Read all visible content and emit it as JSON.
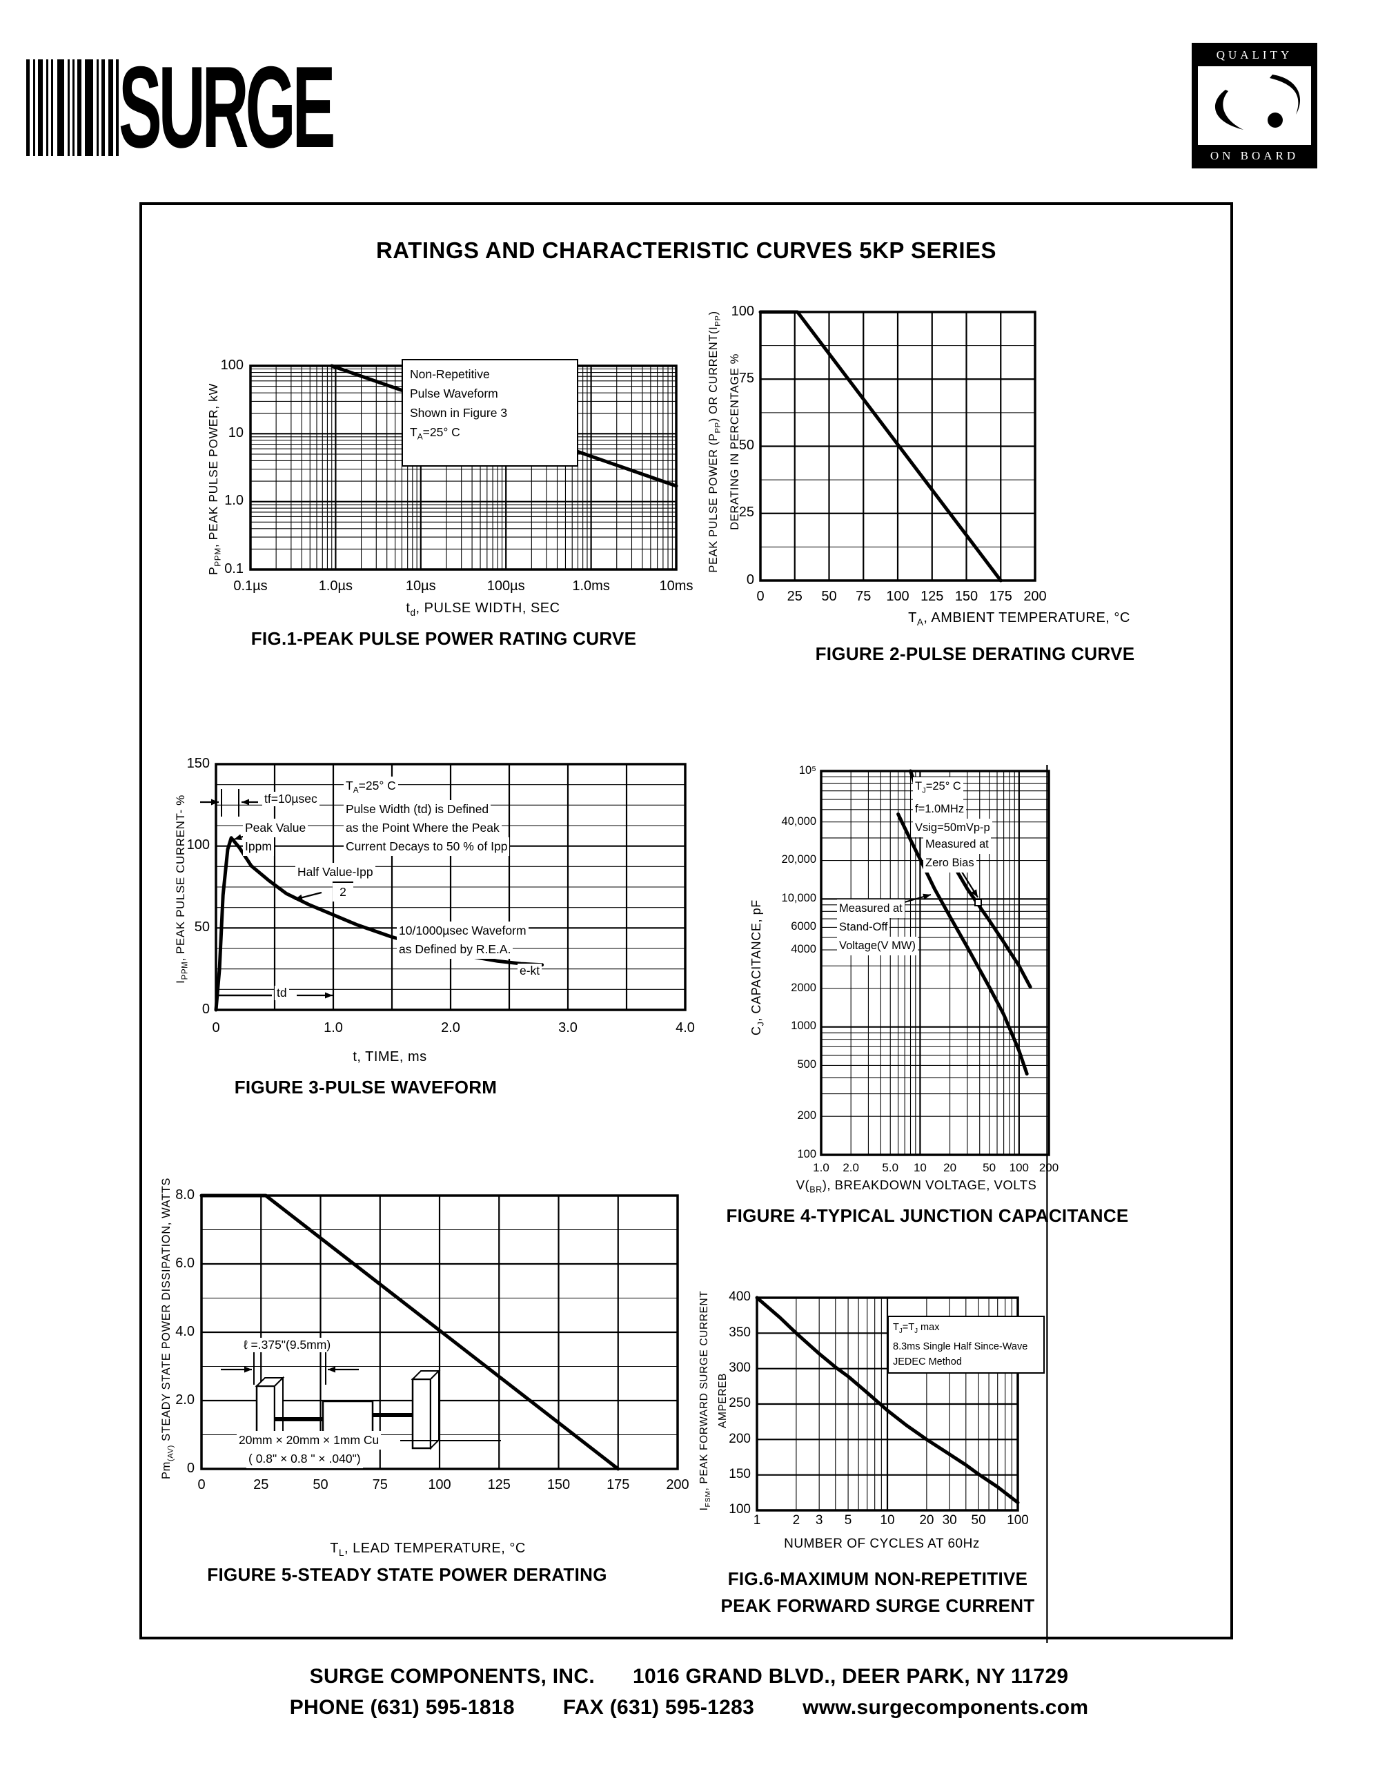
{
  "header": {
    "brand_wordmark": "SURGE",
    "badge_top": "QUALITY",
    "badge_bottom": "ON BOARD"
  },
  "title": "RATINGS AND CHARACTERISTIC CURVES 5KP SERIES",
  "footer": {
    "company": "SURGE COMPONENTS, INC.",
    "address": "1016 GRAND BLVD., DEER PARK, NY  11729",
    "phone": "PHONE (631) 595-1818",
    "fax": "FAX  (631) 595-1283",
    "website": "www.surgecomponents.com"
  },
  "chart_data": [
    {
      "id": "fig1",
      "type": "line",
      "caption": "FIG.1-PEAK PULSE POWER RATING CURVE",
      "xlabel": "t~d~, PULSE WIDTH, SEC",
      "ylabel": "P~PPM~, PEAK PULSE POWER, kW",
      "notes": {
        "l1": "Non-Repetitive",
        "l2": "Pulse Waveform",
        "l3": "Shown in Figure 3",
        "l4": "T~A~=25° C"
      },
      "axes": {
        "x": {
          "scale": "log",
          "min": 1e-07,
          "max": 0.01
        },
        "y": {
          "scale": "log",
          "min": 0.1,
          "max": 100
        }
      },
      "xticks": [
        {
          "v": 1e-07,
          "t": "0.1µs"
        },
        {
          "v": 1e-06,
          "t": "1.0µs"
        },
        {
          "v": 1e-05,
          "t": "10µs"
        },
        {
          "v": 0.0001,
          "t": "100µs"
        },
        {
          "v": 0.001,
          "t": "1.0ms"
        },
        {
          "v": 0.01,
          "t": "10ms"
        }
      ],
      "yticks": [
        {
          "v": 100,
          "t": "100"
        },
        {
          "v": 10,
          "t": "10"
        },
        {
          "v": 1,
          "t": "1.0"
        },
        {
          "v": 0.1,
          "t": "0.1"
        }
      ],
      "series": [
        {
          "name": "peak-pulse-power",
          "points": [
            [
              9e-07,
              100
            ],
            [
              0.01,
              1.7
            ]
          ]
        }
      ]
    },
    {
      "id": "fig2",
      "type": "line",
      "caption": "FIGURE 2-PULSE DERATING CURVE",
      "xlabel": "T~A~, AMBIENT TEMPERATURE, °C",
      "ylabel": "PEAK PULSE POWER (P~PP~) OR CURRENT(I~PP~)",
      "ylabel2": "DERATING IN PERCENTAGE %",
      "axes": {
        "x": {
          "scale": "linear",
          "min": 0,
          "max": 200,
          "major": 25
        },
        "y": {
          "scale": "linear",
          "min": 0,
          "max": 100,
          "major": 25,
          "minor": 12.5
        }
      },
      "xticks": [
        {
          "v": 0,
          "t": "0"
        },
        {
          "v": 25,
          "t": "25"
        },
        {
          "v": 50,
          "t": "50"
        },
        {
          "v": 75,
          "t": "75"
        },
        {
          "v": 100,
          "t": "100"
        },
        {
          "v": 125,
          "t": "125"
        },
        {
          "v": 150,
          "t": "150"
        },
        {
          "v": 175,
          "t": "175"
        },
        {
          "v": 200,
          "t": "200"
        }
      ],
      "yticks": [
        {
          "v": 100,
          "t": "100"
        },
        {
          "v": 75,
          "t": "75"
        },
        {
          "v": 50,
          "t": "50"
        },
        {
          "v": 25,
          "t": "25"
        },
        {
          "v": 0,
          "t": "0"
        }
      ],
      "series": [
        {
          "name": "pulse-derating",
          "points": [
            [
              0,
              100
            ],
            [
              27,
              100
            ],
            [
              175,
              0
            ]
          ]
        }
      ]
    },
    {
      "id": "fig3",
      "type": "line",
      "caption": "FIGURE 3-PULSE WAVEFORM",
      "xlabel": "t, TIME, ms",
      "ylabel": "I~PPM~, PEAK PULSE CURRENT- %",
      "notes": {
        "tf": "tf=10µsec",
        "peak1": "Peak Value",
        "peak2": "Ippm",
        "half1": "Half Value-Ipp",
        "half2": "2",
        "c1": "T~A~=25° C",
        "c2": "Pulse Width (td) is Defined",
        "c3": "as the Point Where the Peak",
        "c4": "Current Decays to 50 % of Ipp",
        "w1": "10/1000µsec Waveform",
        "w2": "as Defined by R.E.A.",
        "ekt": "e-kt",
        "td": "td"
      },
      "axes": {
        "x": {
          "scale": "linear",
          "min": 0,
          "max": 4,
          "major": 0.5
        },
        "y": {
          "scale": "linear",
          "min": 0,
          "max": 150,
          "major": 50,
          "minor": 12.5
        }
      },
      "xticks": [
        {
          "v": 0,
          "t": "0"
        },
        {
          "v": 1,
          "t": "1.0"
        },
        {
          "v": 2,
          "t": "2.0"
        },
        {
          "v": 3,
          "t": "3.0"
        },
        {
          "v": 4,
          "t": "4.0"
        }
      ],
      "yticks": [
        {
          "v": 150,
          "t": "150"
        },
        {
          "v": 100,
          "t": "100"
        },
        {
          "v": 50,
          "t": "50"
        },
        {
          "v": 0,
          "t": "0"
        }
      ],
      "series": [
        {
          "name": "pulse-waveform",
          "points": [
            [
              0,
              0
            ],
            [
              0.03,
              25
            ],
            [
              0.06,
              70
            ],
            [
              0.1,
              98
            ],
            [
              0.13,
              105
            ],
            [
              0.2,
              99
            ],
            [
              0.3,
              88
            ],
            [
              0.45,
              79
            ],
            [
              0.6,
              71
            ],
            [
              0.8,
              64
            ],
            [
              1.0,
              58
            ],
            [
              1.2,
              52
            ],
            [
              1.5,
              44.5
            ],
            [
              1.8,
              38.5
            ],
            [
              2.1,
              33.5
            ],
            [
              2.4,
              29.8
            ],
            [
              2.6,
              28.2
            ],
            [
              2.78,
              27.5
            ]
          ]
        }
      ]
    },
    {
      "id": "fig4",
      "type": "line",
      "caption": "FIGURE 4-TYPICAL JUNCTION CAPACITANCE",
      "xlabel": "V(~BR~), BREAKDOWN VOLTAGE, VOLTS",
      "ylabel": "C~J~, CAPACITANCE, pF",
      "notes": {
        "c1": "T~J~=25° C",
        "c2": "f=1.0MHz",
        "c3": "Vsig=50mVp-p",
        "z1": "Measured at",
        "z2": "Zero Bias",
        "s1": "Measured at",
        "s2": "Stand-Off",
        "s3": "Voltage(V MW)"
      },
      "axes": {
        "x": {
          "scale": "log",
          "min": 1,
          "max": 200
        },
        "y": {
          "scale": "log",
          "min": 100,
          "max": 100000
        }
      },
      "xticks": [
        {
          "v": 1,
          "t": "1.0"
        },
        {
          "v": 2,
          "t": "2.0"
        },
        {
          "v": 5,
          "t": "5.0"
        },
        {
          "v": 10,
          "t": "10"
        },
        {
          "v": 20,
          "t": "20"
        },
        {
          "v": 50,
          "t": "50"
        },
        {
          "v": 100,
          "t": "100"
        },
        {
          "v": 200,
          "t": "200"
        }
      ],
      "yticks": [
        {
          "v": 100000,
          "t": "10⁵"
        },
        {
          "v": 40000,
          "t": "40,000"
        },
        {
          "v": 20000,
          "t": "20,000"
        },
        {
          "v": 10000,
          "t": "10,000"
        },
        {
          "v": 6000,
          "t": "6000"
        },
        {
          "v": 4000,
          "t": "4000"
        },
        {
          "v": 2000,
          "t": "2000"
        },
        {
          "v": 1000,
          "t": "1000"
        },
        {
          "v": 500,
          "t": "500"
        },
        {
          "v": 200,
          "t": "200"
        },
        {
          "v": 100,
          "t": "100"
        }
      ],
      "series": [
        {
          "name": "measured-at-zero-bias",
          "points": [
            [
              8,
              100000
            ],
            [
              10,
              60000
            ],
            [
              14,
              36000
            ],
            [
              20,
              20500
            ],
            [
              30,
              12000
            ],
            [
              50,
              6800
            ],
            [
              70,
              4600
            ],
            [
              100,
              3000
            ],
            [
              130,
              2050
            ]
          ]
        },
        {
          "name": "measured-at-stand-off-voltage",
          "points": [
            [
              6,
              46000
            ],
            [
              8,
              29000
            ],
            [
              10,
              20500
            ],
            [
              14,
              12000
            ],
            [
              20,
              7300
            ],
            [
              30,
              4200
            ],
            [
              50,
              2050
            ],
            [
              70,
              1250
            ],
            [
              100,
              650
            ],
            [
              120,
              430
            ]
          ]
        }
      ]
    },
    {
      "id": "fig5",
      "type": "line",
      "caption": "FIGURE 5-STEADY STATE POWER DERATING",
      "xlabel": "T~L~, LEAD TEMPERATURE, °C",
      "ylabel": "Pm~(AV)~ STEADY STATE POWER DISSIPATION, WATTS",
      "notes": {
        "len": "ℓ =.375\"(9.5mm)",
        "cu1": "20mm × 20mm × 1mm Cu",
        "cu2": "( 0.8\" ×  0.8 \" × .040\")"
      },
      "axes": {
        "x": {
          "scale": "linear",
          "min": 0,
          "max": 200,
          "major": 25
        },
        "y": {
          "scale": "linear",
          "min": 0,
          "max": 8,
          "major": 2,
          "minor": 1
        }
      },
      "xticks": [
        {
          "v": 0,
          "t": "0"
        },
        {
          "v": 25,
          "t": "25"
        },
        {
          "v": 50,
          "t": "50"
        },
        {
          "v": 75,
          "t": "75"
        },
        {
          "v": 100,
          "t": "100"
        },
        {
          "v": 125,
          "t": "125"
        },
        {
          "v": 150,
          "t": "150"
        },
        {
          "v": 175,
          "t": "175"
        },
        {
          "v": 200,
          "t": "200"
        }
      ],
      "yticks": [
        {
          "v": 8,
          "t": "8.0"
        },
        {
          "v": 6,
          "t": "6.0"
        },
        {
          "v": 4,
          "t": "4.0"
        },
        {
          "v": 2,
          "t": "2.0"
        },
        {
          "v": 0,
          "t": "0"
        }
      ],
      "series": [
        {
          "name": "steady-state-power",
          "points": [
            [
              0,
              8
            ],
            [
              27,
              8
            ],
            [
              175,
              0
            ]
          ]
        }
      ]
    },
    {
      "id": "fig6",
      "type": "line",
      "caption": "FIG.6-MAXIMUM NON-REPETITIVE",
      "caption2": "PEAK FORWARD SURGE CURRENT",
      "xlabel": "NUMBER OF CYCLES AT 60Hz",
      "ylabel": "I~FSM~, PEAK FORWARD SURGE CURRENT",
      "ylabel2": "AMPEREB",
      "notes": {
        "c1": "T~J~=T~J~ max",
        "c2": "8.3ms Single Half Since-Wave",
        "c3": "JEDEC Method"
      },
      "axes": {
        "x": {
          "scale": "log",
          "min": 1,
          "max": 100
        },
        "y": {
          "scale": "linear",
          "min": 100,
          "max": 400,
          "major": 50
        }
      },
      "xticks": [
        {
          "v": 1,
          "t": "1"
        },
        {
          "v": 2,
          "t": "2"
        },
        {
          "v": 3,
          "t": "3"
        },
        {
          "v": 5,
          "t": "5"
        },
        {
          "v": 10,
          "t": "10"
        },
        {
          "v": 20,
          "t": "20"
        },
        {
          "v": 30,
          "t": "30"
        },
        {
          "v": 50,
          "t": "50"
        },
        {
          "v": 100,
          "t": "100"
        }
      ],
      "yticks": [
        {
          "v": 400,
          "t": "400"
        },
        {
          "v": 350,
          "t": "350"
        },
        {
          "v": 300,
          "t": "300"
        },
        {
          "v": 250,
          "t": "250"
        },
        {
          "v": 200,
          "t": "200"
        },
        {
          "v": 150,
          "t": "150"
        },
        {
          "v": 100,
          "t": "100"
        }
      ],
      "series": [
        {
          "name": "peak-forward-surge-current",
          "points": [
            [
              1,
              400
            ],
            [
              1.5,
              372
            ],
            [
              2,
              350
            ],
            [
              3,
              321
            ],
            [
              4,
              302
            ],
            [
              5,
              289
            ],
            [
              7,
              266
            ],
            [
              10,
              241
            ],
            [
              14,
              220
            ],
            [
              20,
              200
            ],
            [
              30,
              179
            ],
            [
              40,
              164
            ],
            [
              50,
              151
            ],
            [
              70,
              133
            ],
            [
              100,
              111
            ]
          ]
        }
      ]
    }
  ]
}
